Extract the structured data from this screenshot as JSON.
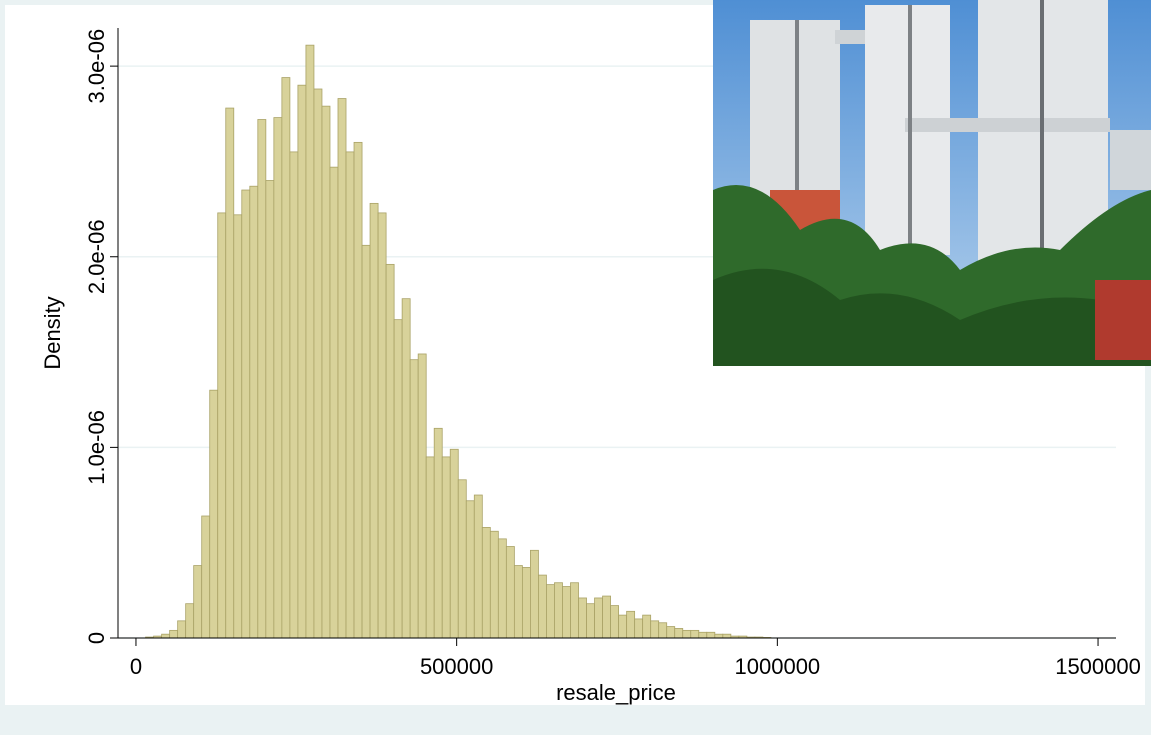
{
  "chart_data": {
    "type": "histogram",
    "x_label": "resale_price",
    "y_label": "Density",
    "bins": [
      15000,
      27500,
      40000,
      52500,
      65000,
      77500,
      90000,
      102500,
      115000,
      127500,
      140000,
      152500,
      165000,
      177500,
      190000,
      202500,
      215000,
      227500,
      240000,
      252500,
      265000,
      277500,
      290000,
      302500,
      315000,
      327500,
      340000,
      352500,
      365000,
      377500,
      390000,
      402500,
      415000,
      427500,
      440000,
      452500,
      465000,
      477500,
      490000,
      502500,
      515000,
      527500,
      540000,
      552500,
      565000,
      577500,
      590000,
      602500,
      615000,
      627500,
      640000,
      652500,
      665000,
      677500,
      690000,
      702500,
      715000,
      727500,
      740000,
      752500,
      765000,
      777500,
      790000,
      802500,
      815000,
      827500,
      840000,
      852500,
      865000,
      877500,
      890000,
      902500,
      915000,
      927500,
      940000,
      952500,
      965000,
      977500,
      990000
    ],
    "values": [
      5e-09,
      1e-08,
      2e-08,
      4e-08,
      9e-08,
      1.8e-07,
      3.8e-07,
      6.4e-07,
      1.3e-06,
      2.23e-06,
      2.78e-06,
      2.22e-06,
      2.35e-06,
      2.37e-06,
      2.72e-06,
      2.4e-06,
      2.73e-06,
      2.94e-06,
      2.55e-06,
      2.9e-06,
      3.11e-06,
      2.88e-06,
      2.79e-06,
      2.47e-06,
      2.83e-06,
      2.55e-06,
      2.6e-06,
      2.06e-06,
      2.28e-06,
      2.23e-06,
      1.96e-06,
      1.67e-06,
      1.78e-06,
      1.46e-06,
      1.49e-06,
      9.5e-07,
      1.1e-06,
      9.5e-07,
      9.9e-07,
      8.3e-07,
      7.2e-07,
      7.5e-07,
      5.8e-07,
      5.6e-07,
      5.2e-07,
      4.8e-07,
      3.8e-07,
      3.7e-07,
      4.6e-07,
      3.3e-07,
      2.8e-07,
      2.9e-07,
      2.7e-07,
      2.9e-07,
      2.1e-07,
      1.8e-07,
      2.1e-07,
      2.2e-07,
      1.7e-07,
      1.2e-07,
      1.4e-07,
      1e-07,
      1.2e-07,
      9e-08,
      8e-08,
      6e-08,
      5e-08,
      4e-08,
      4e-08,
      3e-08,
      3e-08,
      2e-08,
      2e-08,
      1e-08,
      1e-08,
      5e-09,
      5e-09,
      3e-09
    ],
    "color": "#d8d29a",
    "edge_color": "#a9a266",
    "xlim": [
      -28000,
      1528000
    ],
    "xticks": [
      0,
      500000,
      1000000,
      1500000
    ],
    "ylim": [
      0,
      3.2e-06
    ],
    "yticks": [
      0,
      {
        "value": 1e-06,
        "label": "1.0e-06"
      },
      {
        "value": 2e-06,
        "label": "2.0e-06"
      },
      {
        "value": 3e-06,
        "label": "3.0e-06"
      }
    ],
    "grid": true
  }
}
